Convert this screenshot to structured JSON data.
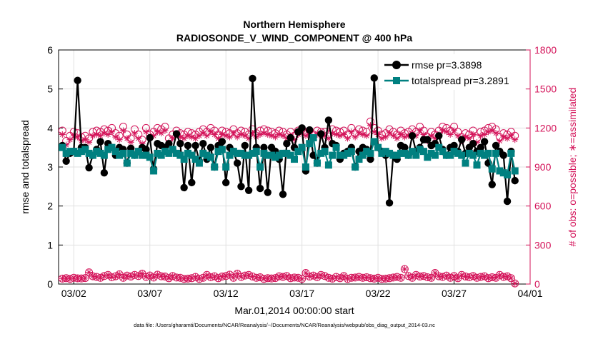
{
  "chart_data": {
    "type": "line",
    "title": "Northern Hemisphere",
    "subtitle": "RADIOSONDE_V_WIND_COMPONENT @ 400 hPa",
    "xlabel": "Mar.01,2014 00:00:00 start",
    "ylabel_left": "rmse and totalspread",
    "ylabel_right": "# of obs: o=possible; ∗=assimilated",
    "footer": "data file: /Users/gharamti/Documents/NCAR/Reanalysis/~/Documents/NCAR/Reanalysis/webpub/obs_diag_output_2014-03.nc",
    "xlim": [
      1,
      32
    ],
    "ylim_left": [
      0,
      6
    ],
    "ylim_right": [
      0,
      1800
    ],
    "x_ticks": [
      {
        "value": 2,
        "label": "03/02"
      },
      {
        "value": 7,
        "label": "03/07"
      },
      {
        "value": 12,
        "label": "03/12"
      },
      {
        "value": 17,
        "label": "03/17"
      },
      {
        "value": 22,
        "label": "03/22"
      },
      {
        "value": 27,
        "label": "03/27"
      },
      {
        "value": 32,
        "label": "04/01"
      }
    ],
    "y_left_ticks": [
      "0",
      "1",
      "2",
      "3",
      "4",
      "5",
      "6"
    ],
    "y_right_ticks": [
      "0",
      "300",
      "600",
      "900",
      "1200",
      "1500",
      "1800"
    ],
    "legend": [
      {
        "name": "rmse",
        "label": "rmse pr=3.3898"
      },
      {
        "name": "totalspread",
        "label": "totalspread pr=3.2891"
      }
    ],
    "legend_position": "top-right",
    "grid": true,
    "colors": {
      "rmse": "#000000",
      "totalspread": "#008080",
      "obs": "#d4145a"
    },
    "time_start_day": 1.25,
    "time_step_days": 0.25,
    "series": [
      {
        "name": "rmse",
        "axis": "left",
        "values": [
          3.55,
          3.15,
          3.35,
          3.4,
          5.22,
          3.5,
          3.5,
          2.98,
          3.3,
          3.45,
          3.65,
          2.85,
          3.6,
          3.5,
          3.3,
          3.5,
          3.45,
          3.1,
          3.48,
          3.3,
          3.4,
          3.5,
          3.45,
          3.75,
          2.95,
          3.6,
          3.55,
          3.5,
          3.6,
          3.45,
          3.85,
          3.6,
          2.47,
          3.55,
          2.6,
          3.55,
          3.15,
          3.6,
          3.2,
          3.5,
          3.0,
          3.55,
          3.65,
          2.6,
          3.5,
          3.4,
          3.1,
          2.5,
          3.55,
          2.4,
          5.27,
          3.5,
          2.45,
          3.5,
          2.35,
          3.5,
          3.4,
          3.2,
          2.3,
          3.6,
          3.75,
          3.5,
          3.9,
          4.0,
          2.9,
          3.95,
          3.3,
          3.1,
          3.85,
          3.5,
          4.2,
          3.6,
          3.55,
          3.2,
          3.35,
          3.4,
          3.5,
          3.0,
          3.4,
          3.5,
          3.45,
          3.2,
          5.28,
          3.5,
          3.4,
          3.3,
          2.08,
          3.3,
          3.2,
          3.55,
          3.5,
          3.3,
          3.8,
          3.4,
          3.5,
          3.7,
          3.7,
          3.55,
          3.6,
          3.8,
          3.45,
          3.3,
          3.5,
          3.55,
          3.4,
          3.7,
          3.35,
          3.5,
          3.6,
          3.4,
          3.5,
          3.65,
          3.1,
          2.55,
          3.55,
          3.4,
          3.3,
          2.12,
          3.4,
          2.65
        ]
      },
      {
        "name": "totalspread",
        "axis": "left",
        "values": [
          3.5,
          3.35,
          3.4,
          3.4,
          3.35,
          3.4,
          3.45,
          3.35,
          3.3,
          3.4,
          3.35,
          3.3,
          3.45,
          3.5,
          3.4,
          3.3,
          3.35,
          3.1,
          3.35,
          3.3,
          3.4,
          3.3,
          3.3,
          3.25,
          2.9,
          3.35,
          3.3,
          3.4,
          3.35,
          3.45,
          3.35,
          3.3,
          3.2,
          3.35,
          3.3,
          3.2,
          3.1,
          3.35,
          3.3,
          3.25,
          3.0,
          3.4,
          3.45,
          3.0,
          3.3,
          3.4,
          3.35,
          3.35,
          3.3,
          3.3,
          3.35,
          3.4,
          3.0,
          3.35,
          3.3,
          3.3,
          3.25,
          3.3,
          3.35,
          3.35,
          3.3,
          3.2,
          3.4,
          3.5,
          3.0,
          3.6,
          3.75,
          3.1,
          3.35,
          3.4,
          3.05,
          3.3,
          3.5,
          3.3,
          3.3,
          3.35,
          3.4,
          3.0,
          3.2,
          3.3,
          3.4,
          3.35,
          3.65,
          3.5,
          3.35,
          3.4,
          3.35,
          3.3,
          3.3,
          3.35,
          3.35,
          3.3,
          3.4,
          3.3,
          3.45,
          3.4,
          3.25,
          3.35,
          3.3,
          3.5,
          3.4,
          3.3,
          3.3,
          3.4,
          3.35,
          3.3,
          3.1,
          3.35,
          3.3,
          3.05,
          3.35,
          3.3,
          3.35,
          2.95,
          3.35,
          2.9,
          2.85,
          2.8,
          3.35,
          2.9
        ]
      },
      {
        "name": "obs_possible",
        "axis": "right",
        "values": [
          1180,
          1100,
          1140,
          1170,
          1160,
          1130,
          1140,
          1120,
          1170,
          1180,
          1170,
          1190,
          1180,
          1200,
          1160,
          1140,
          1210,
          1150,
          1120,
          1190,
          1150,
          1110,
          1200,
          1150,
          1170,
          1200,
          1190,
          1210,
          1120,
          1150,
          1180,
          1160,
          1150,
          1170,
          1160,
          1150,
          1170,
          1190,
          1170,
          1200,
          1180,
          1150,
          1180,
          1170,
          1160,
          1190,
          1160,
          1180,
          1170,
          1150,
          1190,
          1160,
          1180,
          1190,
          1180,
          1170,
          1160,
          1180,
          1170,
          1150,
          1170,
          1140,
          1180,
          1190,
          1170,
          1180,
          1150,
          1180,
          1170,
          1170,
          1150,
          1190,
          1180,
          1170,
          1180,
          1150,
          1200,
          1160,
          1190,
          1180,
          1170,
          1250,
          1200,
          1180,
          1150,
          1160,
          1190,
          1170,
          1150,
          1180,
          1160,
          1170,
          1190,
          1170,
          1210,
          1180,
          1130,
          1170,
          1150,
          1180,
          1210,
          1200,
          1180,
          1210,
          1170,
          1130,
          1160,
          1150,
          1180,
          1120,
          1170,
          1180,
          1200,
          1210,
          1190,
          1130,
          1160,
          1150,
          1170,
          1140
        ]
      },
      {
        "name": "obs_assimilated",
        "axis": "right",
        "values": [
          1150,
          1070,
          1110,
          1140,
          1130,
          1100,
          1110,
          1090,
          1140,
          1150,
          1140,
          1160,
          1150,
          1170,
          1130,
          1110,
          1180,
          1120,
          1090,
          1160,
          1120,
          1080,
          1170,
          1120,
          1140,
          1170,
          1160,
          1180,
          1090,
          1120,
          1150,
          1130,
          1120,
          1140,
          1130,
          1120,
          1140,
          1160,
          1140,
          1170,
          1150,
          1120,
          1150,
          1140,
          1130,
          1160,
          1130,
          1150,
          1140,
          1120,
          1160,
          1130,
          1150,
          1160,
          1150,
          1140,
          1130,
          1150,
          1140,
          1120,
          1140,
          1110,
          1150,
          1160,
          1140,
          1150,
          1120,
          1150,
          1140,
          1140,
          1120,
          1160,
          1150,
          1140,
          1150,
          1120,
          1170,
          1130,
          1160,
          1150,
          1140,
          1220,
          1170,
          1150,
          1120,
          1130,
          1160,
          1140,
          1120,
          1150,
          1130,
          1140,
          1160,
          1140,
          1180,
          1150,
          1100,
          1140,
          1120,
          1150,
          1180,
          1170,
          1150,
          1180,
          1140,
          1100,
          1130,
          1120,
          1150,
          1090,
          1140,
          1150,
          1170,
          1180,
          1160,
          1100,
          1130,
          1120,
          1140,
          1110
        ]
      },
      {
        "name": "obs_possible_low",
        "axis": "right",
        "values": [
          42,
          45,
          40,
          48,
          44,
          43,
          46,
          90,
          60,
          55,
          48,
          62,
          70,
          52,
          60,
          75,
          48,
          65,
          58,
          70,
          62,
          80,
          55,
          66,
          50,
          72,
          60,
          58,
          45,
          62,
          50,
          48,
          40,
          42,
          45,
          55,
          40,
          48,
          70,
          52,
          60,
          45,
          58,
          62,
          72,
          48,
          80,
          55,
          65,
          70,
          58,
          48,
          52,
          40,
          45,
          43,
          46,
          60,
          55,
          62,
          45,
          50,
          48,
          40,
          85,
          58,
          65,
          52,
          70,
          62,
          48,
          42,
          55,
          45,
          62,
          40,
          48,
          50,
          55,
          48,
          52,
          45,
          42,
          48,
          40,
          42,
          45,
          50,
          55,
          48,
          115,
          62,
          48,
          70,
          58,
          62,
          52,
          48,
          85,
          60,
          55,
          65,
          48,
          62,
          45,
          70,
          58,
          52,
          62,
          48,
          55,
          60,
          45,
          52,
          48,
          70,
          55,
          60,
          45,
          5
        ]
      }
    ]
  }
}
